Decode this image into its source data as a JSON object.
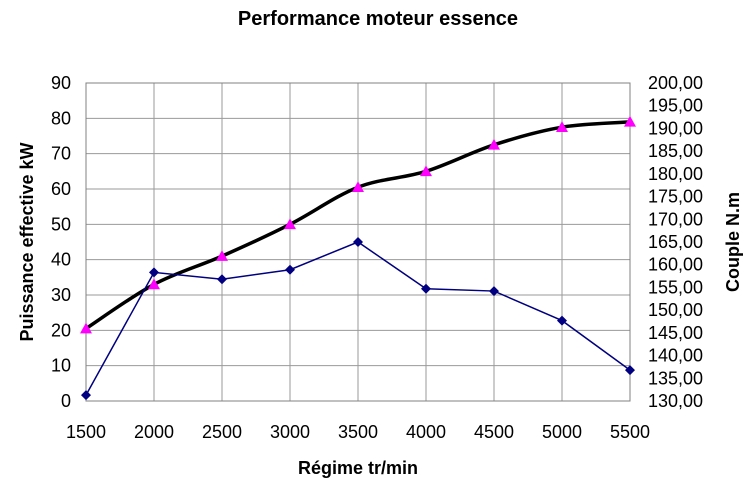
{
  "chart_data": {
    "type": "line",
    "title": "Performance moteur essence",
    "xlabel": "Régime tr/min",
    "ylabel": "Puissance effective kW",
    "y2label": "Couple N.m",
    "x": [
      1500,
      2000,
      2500,
      3000,
      3500,
      4000,
      4500,
      5000,
      5500
    ],
    "xlim": [
      1500,
      5500
    ],
    "ylim": [
      0,
      90
    ],
    "y2lim": [
      130,
      200
    ],
    "grid": true,
    "legend": "none",
    "series": [
      {
        "axis": "left",
        "color": "#000000",
        "marker": "triangle",
        "marker_color": "#ff00ff",
        "values": [
          20.5,
          33,
          41,
          50,
          60.5,
          65,
          72.5,
          77.5,
          79
        ]
      },
      {
        "axis": "right",
        "color": "#000080",
        "marker": "diamond",
        "marker_color": "#000080",
        "values": [
          131.3,
          158.3,
          156.8,
          158.9,
          165.0,
          154.7,
          154.2,
          147.7,
          136.8
        ]
      }
    ],
    "xticks": [
      "1500",
      "2000",
      "2500",
      "3000",
      "3500",
      "4000",
      "4500",
      "5000",
      "5500"
    ],
    "yticks": [
      "0",
      "10",
      "20",
      "30",
      "40",
      "50",
      "60",
      "70",
      "80",
      "90"
    ],
    "y2ticks": [
      "130,00",
      "135,00",
      "140,00",
      "145,00",
      "150,00",
      "155,00",
      "160,00",
      "165,00",
      "170,00",
      "175,00",
      "180,00",
      "185,00",
      "190,00",
      "195,00",
      "200,00"
    ]
  }
}
